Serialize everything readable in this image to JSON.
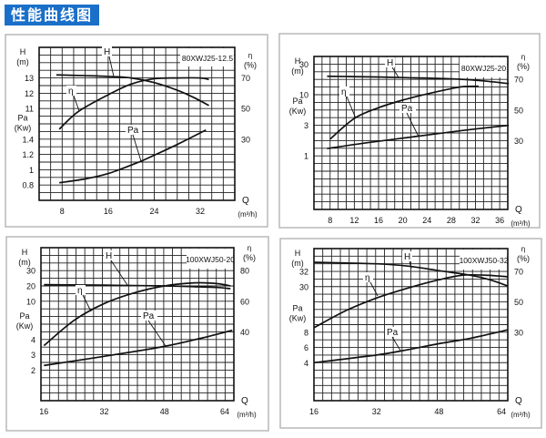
{
  "header": {
    "title": "性能曲线图",
    "banner_color": "#1a6fc9"
  },
  "chart_data": [
    {
      "type": "line",
      "model": "80XWJ25-12.5",
      "grid": true,
      "x_axis": {
        "label": "Q",
        "unit": "(m³/h)",
        "ticks": [
          8,
          16,
          24,
          32
        ],
        "xlim": [
          4,
          38
        ]
      },
      "left_axes": [
        {
          "key": "H",
          "label": "H",
          "unit": "(m)",
          "scale": "linear",
          "ticks": [
            13,
            12,
            11
          ]
        },
        {
          "key": "Pa",
          "label": "Pa",
          "unit": "(Kw)",
          "scale": "linear",
          "ticks": [
            1.4,
            1.2,
            1,
            0.8
          ]
        }
      ],
      "right_axis": {
        "key": "eta",
        "label": "η",
        "unit": "(%)",
        "scale": "linear",
        "ticks": [
          70,
          50,
          30
        ]
      },
      "series": [
        {
          "name": "H",
          "axis": "H",
          "points": [
            [
              7,
              13.2
            ],
            [
              12,
              13.15
            ],
            [
              16,
              13.1
            ],
            [
              20,
              13.0
            ],
            [
              24,
              12.7
            ],
            [
              28,
              12.2
            ],
            [
              31,
              11.7
            ],
            [
              33.5,
              11.2
            ]
          ]
        },
        {
          "name": "η",
          "axis": "eta",
          "points": [
            [
              7.5,
              36.5
            ],
            [
              10.8,
              48
            ],
            [
              16,
              59
            ],
            [
              20,
              66
            ],
            [
              24,
              69.5
            ],
            [
              28,
              70
            ],
            [
              32,
              70
            ],
            [
              33.5,
              69
            ]
          ]
        },
        {
          "name": "Pa",
          "axis": "Pa",
          "points": [
            [
              7.5,
              0.83
            ],
            [
              12,
              0.88
            ],
            [
              16,
              0.95
            ],
            [
              21,
              1.09
            ],
            [
              24,
              1.19
            ],
            [
              28,
              1.33
            ],
            [
              33,
              1.52
            ]
          ]
        }
      ]
    },
    {
      "type": "line",
      "model": "80XWJ25-20",
      "grid": true,
      "x_axis": {
        "label": "Q",
        "unit": "(m³/h)",
        "ticks": [
          8,
          12,
          16,
          20,
          24,
          28,
          32,
          36
        ],
        "xlim": [
          5.33,
          37.33
        ]
      },
      "left_axes": [
        {
          "key": "H",
          "label": "H",
          "unit": "(m)",
          "scale": "log",
          "ticks": [
            30,
            10
          ]
        },
        {
          "key": "Pa",
          "label": "Pa",
          "unit": "(Kw)",
          "scale": "log",
          "ticks": [
            3,
            1
          ]
        }
      ],
      "right_axis": {
        "key": "eta",
        "label": "η",
        "unit": "(%)",
        "scale": "linear",
        "ticks": [
          70,
          50,
          30
        ]
      },
      "series": [
        {
          "name": "H",
          "axis": "H",
          "points": [
            [
              7.5,
              19.4
            ],
            [
              14,
              19
            ],
            [
              20,
              18.5
            ],
            [
              28,
              17.7
            ],
            [
              33,
              16.5
            ],
            [
              37.5,
              14.9
            ]
          ]
        },
        {
          "name": "η",
          "axis": "eta",
          "points": [
            [
              8,
              31
            ],
            [
              12,
              44.5
            ],
            [
              16,
              51.5
            ],
            [
              20,
              56.5
            ],
            [
              24,
              60.5
            ],
            [
              28,
              64
            ],
            [
              30,
              65.3
            ],
            [
              32.5,
              65.5
            ]
          ]
        },
        {
          "name": "Pa",
          "axis": "Pa",
          "points": [
            [
              7.5,
              1.3
            ],
            [
              14,
              1.6
            ],
            [
              22,
              2.0
            ],
            [
              30,
              2.5
            ],
            [
              37.5,
              3.0
            ]
          ]
        }
      ]
    },
    {
      "type": "line",
      "model": "100XWJ50-20",
      "grid": true,
      "x_axis": {
        "label": "Q",
        "unit": "(m³/h)",
        "ticks": [
          16,
          32,
          48,
          64
        ],
        "xlim": [
          15.2,
          66.4
        ]
      },
      "left_axes": [
        {
          "key": "H",
          "label": "H",
          "unit": "(m)",
          "scale": "linear",
          "ticks": [
            30,
            20,
            10
          ]
        },
        {
          "key": "Pa",
          "label": "Pa",
          "unit": "(Kw)",
          "scale": "linear",
          "ticks": [
            4,
            3,
            2
          ]
        }
      ],
      "right_axis": {
        "key": "eta",
        "label": "η",
        "unit": "(%)",
        "scale": "linear",
        "ticks": [
          80,
          60,
          40
        ]
      },
      "series": [
        {
          "name": "H",
          "axis": "H",
          "points": [
            [
              16,
              20.8
            ],
            [
              32,
              20.5
            ],
            [
              48,
              20
            ],
            [
              56,
              19.5
            ],
            [
              62,
              19
            ],
            [
              65.5,
              18.2
            ]
          ]
        },
        {
          "name": "η",
          "axis": "eta",
          "points": [
            [
              16,
              31
            ],
            [
              24,
              47.5
            ],
            [
              32,
              58.5
            ],
            [
              40,
              65.5
            ],
            [
              48,
              70
            ],
            [
              56,
              72
            ],
            [
              62,
              71.5
            ],
            [
              65.5,
              70
            ]
          ]
        },
        {
          "name": "Pa",
          "axis": "Pa",
          "points": [
            [
              16,
              2.3
            ],
            [
              32,
              2.9
            ],
            [
              48,
              3.55
            ],
            [
              58,
              4.1
            ],
            [
              66,
              4.6
            ]
          ]
        }
      ]
    },
    {
      "type": "line",
      "model": "100XWJ50-32",
      "grid": true,
      "x_axis": {
        "label": "Q",
        "unit": "(m³/h)",
        "ticks": [
          16,
          32,
          48,
          64
        ],
        "xlim": [
          16,
          65.6
        ]
      },
      "left_axes": [
        {
          "key": "H",
          "label": "H",
          "unit": "(m)",
          "scale": "linear",
          "ticks": [
            32,
            30
          ]
        },
        {
          "key": "Pa",
          "label": "Pa",
          "unit": "(Kw)",
          "scale": "linear",
          "ticks": [
            8,
            6,
            4
          ]
        }
      ],
      "right_axis": {
        "key": "eta",
        "label": "η",
        "unit": "(%)",
        "scale": "linear",
        "ticks": [
          70,
          50,
          30
        ]
      },
      "series": [
        {
          "name": "H",
          "axis": "H",
          "points": [
            [
              16,
              33.2
            ],
            [
              32,
              33
            ],
            [
              40,
              32.7
            ],
            [
              48,
              32.1
            ],
            [
              56,
              31.5
            ],
            [
              61,
              30.9
            ],
            [
              65.5,
              30.1
            ]
          ]
        },
        {
          "name": "η",
          "axis": "eta",
          "points": [
            [
              16,
              33
            ],
            [
              24,
              44
            ],
            [
              32,
              52.5
            ],
            [
              40,
              59
            ],
            [
              48,
              64.5
            ],
            [
              54,
              67.5
            ],
            [
              60,
              67.5
            ],
            [
              65.5,
              66.5
            ]
          ]
        },
        {
          "name": "Pa",
          "axis": "Pa",
          "points": [
            [
              16,
              4.0
            ],
            [
              32,
              5.0
            ],
            [
              40,
              5.7
            ],
            [
              48,
              6.5
            ],
            [
              56,
              7.2
            ],
            [
              65.5,
              8.3
            ]
          ]
        }
      ]
    }
  ]
}
